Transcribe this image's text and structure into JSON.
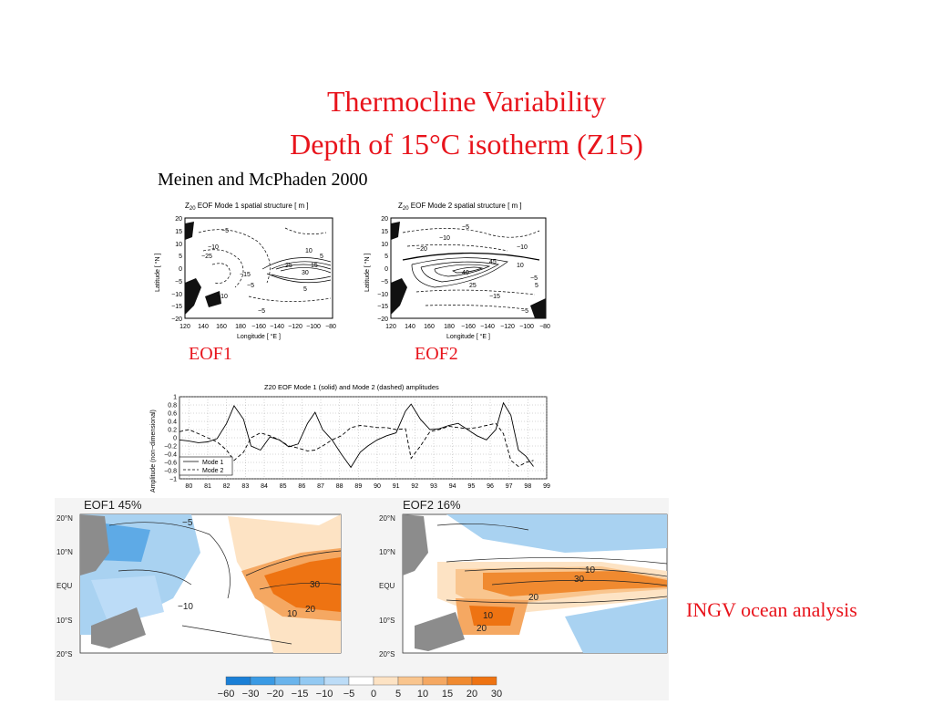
{
  "slide": {
    "title_line1": "Thermocline Variability",
    "title_line2": "Depth of 15°C isotherm (Z15)",
    "citation": "Meinen and McPhaden 2000",
    "eof1_label": "EOF1",
    "eof2_label": "EOF2",
    "ingv_label": "INGV ocean analysis",
    "colors": {
      "title": "#e8141c",
      "positive": "#f08a30",
      "negative": "#4da3e0"
    }
  },
  "maps": {
    "mode1": {
      "title_main": "Z",
      "title_sub": "20",
      "title_rest": " EOF Mode 1 spatial structure [ m ]",
      "ylabel": "Latitude [ °N ]",
      "xlabel": "Longitude [ °E ]",
      "yticks": [
        "20",
        "15",
        "10",
        "5",
        "0",
        "−5",
        "−10",
        "−15",
        "−20"
      ],
      "xticks": [
        "120",
        "140",
        "160",
        "180",
        "−160",
        "−140",
        "−120",
        "−100",
        "−80"
      ],
      "contour_labels": [
        "−5",
        "−10",
        "−25",
        "−15",
        "−5",
        "10",
        "5",
        "25",
        "30",
        "15",
        "−10",
        "−5",
        "5"
      ]
    },
    "mode2": {
      "title_main": "Z",
      "title_sub": "20",
      "title_rest": " EOF Mode 2 spatial structure [ m ]",
      "ylabel": "Latitude [ °N ]",
      "xlabel": "Longitude [ °E ]",
      "yticks": [
        "20",
        "15",
        "10",
        "5",
        "0",
        "−5",
        "−10",
        "−15",
        "−20"
      ],
      "xticks": [
        "120",
        "140",
        "160",
        "180",
        "−160",
        "−140",
        "−120",
        "−100",
        "−80"
      ],
      "contour_labels": [
        "−5",
        "−10",
        "−20",
        "−10",
        "40",
        "45",
        "25",
        "10",
        "−5",
        "−5",
        "−15",
        "5"
      ]
    }
  },
  "chart_data": {
    "type": "line",
    "title": "Z20 EOF Mode 1 (solid) and Mode 2 (dashed) amplitudes",
    "ylabel": "Amplitude (non−dimensional)",
    "xlabel": "",
    "ylim": [
      -1,
      1
    ],
    "xlim": [
      80,
      99.5
    ],
    "yticks": [
      "1",
      "0.8",
      "0.6",
      "0.4",
      "0.2",
      "0",
      "−0.2",
      "−0.4",
      "−0.6",
      "−0.8",
      "−1"
    ],
    "xticks": [
      "80",
      "81",
      "82",
      "83",
      "84",
      "85",
      "86",
      "87",
      "88",
      "89",
      "90",
      "91",
      "92",
      "93",
      "94",
      "95",
      "96",
      "97",
      "98",
      "99"
    ],
    "grid": true,
    "legend_position": "bottom-left",
    "legend": [
      "Mode 1",
      "Mode 2"
    ],
    "series": [
      {
        "name": "Mode 1",
        "x": [
          80,
          80.5,
          81,
          81.5,
          82,
          82.5,
          82.9,
          83.4,
          83.8,
          84.3,
          84.8,
          85.3,
          85.8,
          86.3,
          86.8,
          87.2,
          87.6,
          88.1,
          88.6,
          89.1,
          89.6,
          90,
          90.5,
          91,
          91.5,
          92,
          92.3,
          92.8,
          93.3,
          93.8,
          94.3,
          94.8,
          95.3,
          95.8,
          96.3,
          96.8,
          97.2,
          97.6,
          98,
          98.4,
          98.8
        ],
        "y": [
          -0.05,
          -0.08,
          -0.12,
          -0.1,
          -0.02,
          0.35,
          0.78,
          0.45,
          -0.2,
          -0.3,
          0.02,
          -0.05,
          -0.22,
          -0.15,
          0.35,
          0.62,
          0.2,
          -0.05,
          -0.4,
          -0.72,
          -0.35,
          -0.2,
          -0.05,
          0.05,
          0.12,
          0.65,
          0.82,
          0.45,
          0.2,
          0.22,
          0.3,
          0.35,
          0.2,
          0.05,
          -0.05,
          0.2,
          0.85,
          0.55,
          -0.3,
          -0.45,
          -0.7
        ]
      },
      {
        "name": "Mode 2",
        "x": [
          80,
          80.5,
          81,
          81.5,
          82,
          82.5,
          82.9,
          83.4,
          83.8,
          84.3,
          84.8,
          85.3,
          85.8,
          86.3,
          86.8,
          87.2,
          87.6,
          88.1,
          88.6,
          89.1,
          89.6,
          90,
          90.5,
          91,
          91.5,
          92,
          92.3,
          92.8,
          93.3,
          93.8,
          94.3,
          94.8,
          95.3,
          95.8,
          96.3,
          96.8,
          97.2,
          97.6,
          98,
          98.4,
          98.8
        ],
        "y": [
          0.15,
          0.2,
          0.1,
          0.0,
          -0.1,
          -0.3,
          -0.55,
          -0.35,
          0.0,
          0.12,
          0.05,
          -0.05,
          -0.2,
          -0.25,
          -0.32,
          -0.3,
          -0.2,
          -0.05,
          0.05,
          0.25,
          0.3,
          0.28,
          0.25,
          0.25,
          0.2,
          0.22,
          -0.5,
          -0.2,
          0.15,
          0.2,
          0.28,
          0.25,
          0.22,
          0.25,
          0.3,
          0.35,
          0.1,
          -0.55,
          -0.7,
          -0.6,
          -0.55
        ]
      }
    ]
  },
  "ingv": {
    "eof1_title": "EOF1  45%",
    "eof2_title": "EOF2  16%",
    "lat_labels": [
      "20°N",
      "10°N",
      "EQU",
      "10°S",
      "20°S"
    ],
    "eof1_contours": [
      "−5",
      "−10",
      "10",
      "20",
      "30"
    ],
    "eof2_contours": [
      "10",
      "30",
      "20",
      "20",
      "10"
    ],
    "colorbar_labels": [
      "−60",
      "−30",
      "−20",
      "−15",
      "−10",
      "−5",
      "0",
      "5",
      "10",
      "15",
      "20",
      "30"
    ],
    "colorbar_colors": [
      "#1a7fd6",
      "#3a9ae4",
      "#6ab4ec",
      "#93c9f2",
      "#bcdcf7",
      "#ffffff",
      "#fde3c4",
      "#f9c58e",
      "#f5a862",
      "#f08a30",
      "#ee7312"
    ]
  }
}
